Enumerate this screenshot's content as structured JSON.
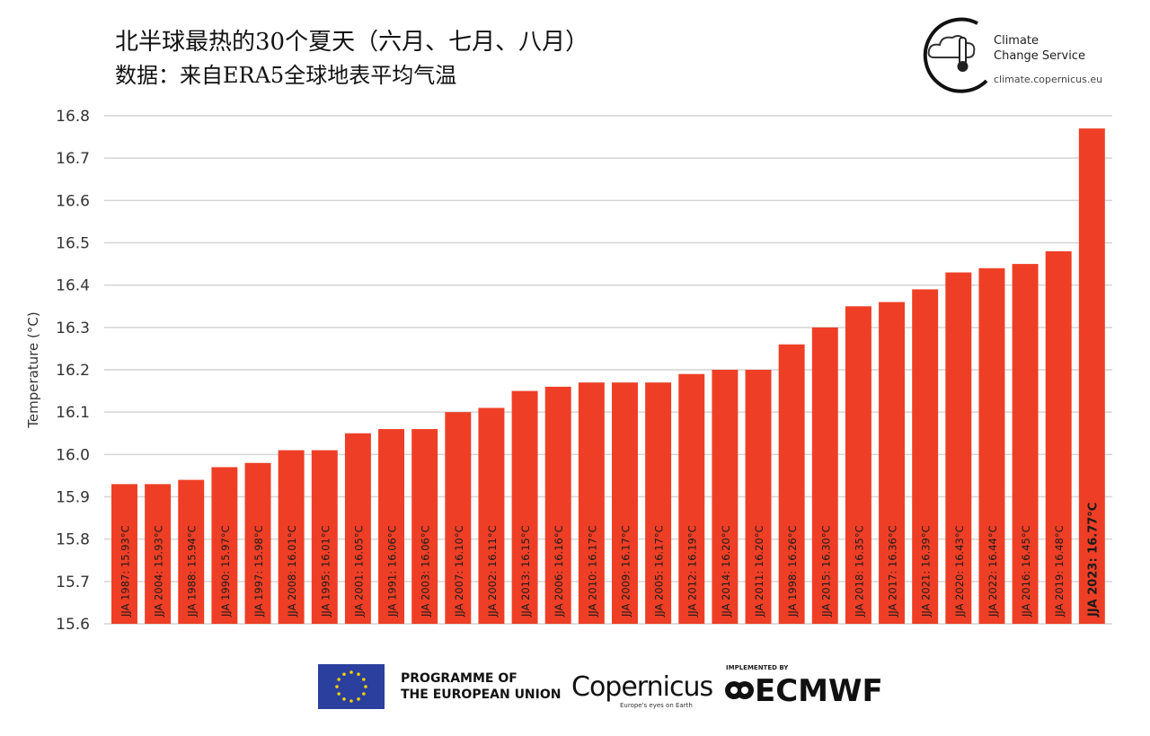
{
  "title": "北半球最热的30个夏天（六月、七月、八月）",
  "subtitle": "数据：来自ERA5全球地表平均气温",
  "brand": {
    "line1": "Climate",
    "line2": "Change Service",
    "url": "climate.copernicus.eu"
  },
  "footer": {
    "eu_line1": "PROGRAMME OF",
    "eu_line2": "THE EUROPEAN UNION",
    "copernicus": "Copernicus",
    "copernicus_tag": "Europe's eyes on Earth",
    "implemented_by": "IMPLEMENTED BY",
    "ecmwf": "ECMWF"
  },
  "colors": {
    "bar": "#ee3f26",
    "grid": "#d4d4d4"
  },
  "chart_data": {
    "type": "bar",
    "ylabel": "Temperature (°C)",
    "ylim": [
      15.6,
      16.8
    ],
    "yticks": [
      "15.6",
      "15.7",
      "15.8",
      "15.9",
      "16.0",
      "16.1",
      "16.2",
      "16.3",
      "16.4",
      "16.5",
      "16.6",
      "16.7",
      "16.8"
    ],
    "grid": true,
    "categories": [
      "JJA 1987",
      "JJA 2004",
      "JJA 1988",
      "JJA 1990",
      "JJA 1997",
      "JJA 2008",
      "JJA 1995",
      "JJA 2001",
      "JJA 1991",
      "JJA 2003",
      "JJA 2007",
      "JJA 2002",
      "JJA 2013",
      "JJA 2006",
      "JJA 2010",
      "JJA 2009",
      "JJA 2005",
      "JJA 2012",
      "JJA 2014",
      "JJA 2011",
      "JJA 1998",
      "JJA 2015",
      "JJA 2018",
      "JJA 2017",
      "JJA 2021",
      "JJA 2020",
      "JJA 2022",
      "JJA 2016",
      "JJA 2019",
      "JJA 2023"
    ],
    "values": [
      15.93,
      15.93,
      15.94,
      15.97,
      15.98,
      16.01,
      16.01,
      16.05,
      16.06,
      16.06,
      16.1,
      16.11,
      16.15,
      16.16,
      16.17,
      16.17,
      16.17,
      16.19,
      16.2,
      16.2,
      16.26,
      16.3,
      16.35,
      16.36,
      16.39,
      16.43,
      16.44,
      16.45,
      16.48,
      16.77
    ],
    "labels": [
      "JJA 1987: 15.93°C",
      "JJA 2004: 15.93°C",
      "JJA 1988: 15.94°C",
      "JJA 1990: 15.97°C",
      "JJA 1997: 15.98°C",
      "JJA 2008: 16.01°C",
      "JJA 1995: 16.01°C",
      "JJA 2001: 16.05°C",
      "JJA 1991: 16.06°C",
      "JJA 2003: 16.06°C",
      "JJA 2007: 16.10°C",
      "JJA 2002: 16.11°C",
      "JJA 2013: 16.15°C",
      "JJA 2006: 16.16°C",
      "JJA 2010: 16.17°C",
      "JJA 2009: 16.17°C",
      "JJA 2005: 16.17°C",
      "JJA 2012: 16.19°C",
      "JJA 2014: 16.20°C",
      "JJA 2011: 16.20°C",
      "JJA 1998: 16.26°C",
      "JJA 2015: 16.30°C",
      "JJA 2018: 16.35°C",
      "JJA 2017: 16.36°C",
      "JJA 2021: 16.39°C",
      "JJA 2020: 16.43°C",
      "JJA 2022: 16.44°C",
      "JJA 2016: 16.45°C",
      "JJA 2019: 16.48°C",
      "JJA 2023: 16.77°C"
    ],
    "highlight": "JJA 2023"
  }
}
